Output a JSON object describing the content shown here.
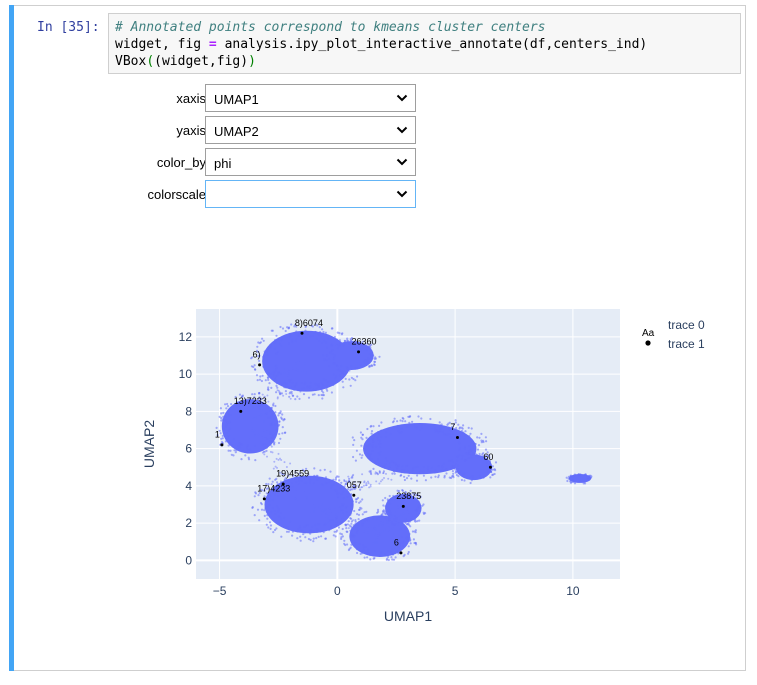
{
  "cell": {
    "prompt": "In [35]:",
    "code": {
      "line1": "# Annotated points correspond to kmeans cluster centers",
      "line2_a": "widget, fig ",
      "line2_op": "=",
      "line2_b": " analysis.ipy_plot_interactive_annotate(df,centers_ind)",
      "line3_a": "VBox",
      "line3_p1": "(",
      "line3_b": "(widget,fig)",
      "line3_p2": ")"
    }
  },
  "controls": [
    {
      "label": "xaxis",
      "value": "UMAP1"
    },
    {
      "label": "yaxis",
      "value": "UMAP2"
    },
    {
      "label": "color_by",
      "value": "phi"
    },
    {
      "label": "colorscale",
      "value": ""
    }
  ],
  "legend": {
    "item0_glyph": "Aa",
    "item0": "trace 0",
    "item1": "trace 1"
  },
  "chart_data": {
    "type": "scatter",
    "xlabel": "UMAP1",
    "ylabel": "UMAP2",
    "xlim": [
      -6,
      12
    ],
    "ylim": [
      -1,
      13.5
    ],
    "xticks": [
      -5,
      0,
      5,
      10
    ],
    "yticks": [
      0,
      2,
      4,
      6,
      8,
      10,
      12
    ],
    "grid": true,
    "legend_position": "top-right",
    "point_color": "#636efa",
    "series": [
      {
        "name": "trace 0",
        "clusters": [
          {
            "cx": -1.3,
            "cy": 10.7,
            "rx": 2.2,
            "ry": 1.9
          },
          {
            "cx": 0.6,
            "cy": 11.0,
            "rx": 1.1,
            "ry": 0.9
          },
          {
            "cx": -3.7,
            "cy": 7.2,
            "rx": 1.4,
            "ry": 1.7
          },
          {
            "cx": 3.5,
            "cy": 6.0,
            "rx": 2.8,
            "ry": 1.6
          },
          {
            "cx": 5.8,
            "cy": 5.0,
            "rx": 0.9,
            "ry": 0.8
          },
          {
            "cx": -1.2,
            "cy": 3.0,
            "rx": 2.2,
            "ry": 1.8
          },
          {
            "cx": 1.8,
            "cy": 1.3,
            "rx": 1.5,
            "ry": 1.3
          },
          {
            "cx": 2.8,
            "cy": 2.8,
            "rx": 0.9,
            "ry": 0.9
          },
          {
            "cx": 10.3,
            "cy": 4.4,
            "rx": 0.55,
            "ry": 0.28
          }
        ]
      },
      {
        "name": "trace 1",
        "annotations": [
          {
            "x": -1.8,
            "y": 12.6,
            "text": "8)6074"
          },
          {
            "x": 0.6,
            "y": 11.6,
            "text": "26360"
          },
          {
            "x": -3.6,
            "y": 10.9,
            "text": "6)"
          },
          {
            "x": -4.4,
            "y": 8.4,
            "text": "13)7233"
          },
          {
            "x": -5.2,
            "y": 6.6,
            "text": "1"
          },
          {
            "x": 4.8,
            "y": 7.0,
            "text": "7"
          },
          {
            "x": 6.2,
            "y": 5.4,
            "text": "60"
          },
          {
            "x": -2.6,
            "y": 4.5,
            "text": "19)4559"
          },
          {
            "x": -3.4,
            "y": 3.7,
            "text": "17)4233"
          },
          {
            "x": 0.4,
            "y": 3.9,
            "text": "057"
          },
          {
            "x": 2.5,
            "y": 3.3,
            "text": "23875"
          },
          {
            "x": 2.4,
            "y": 0.8,
            "text": "6"
          }
        ]
      }
    ]
  }
}
